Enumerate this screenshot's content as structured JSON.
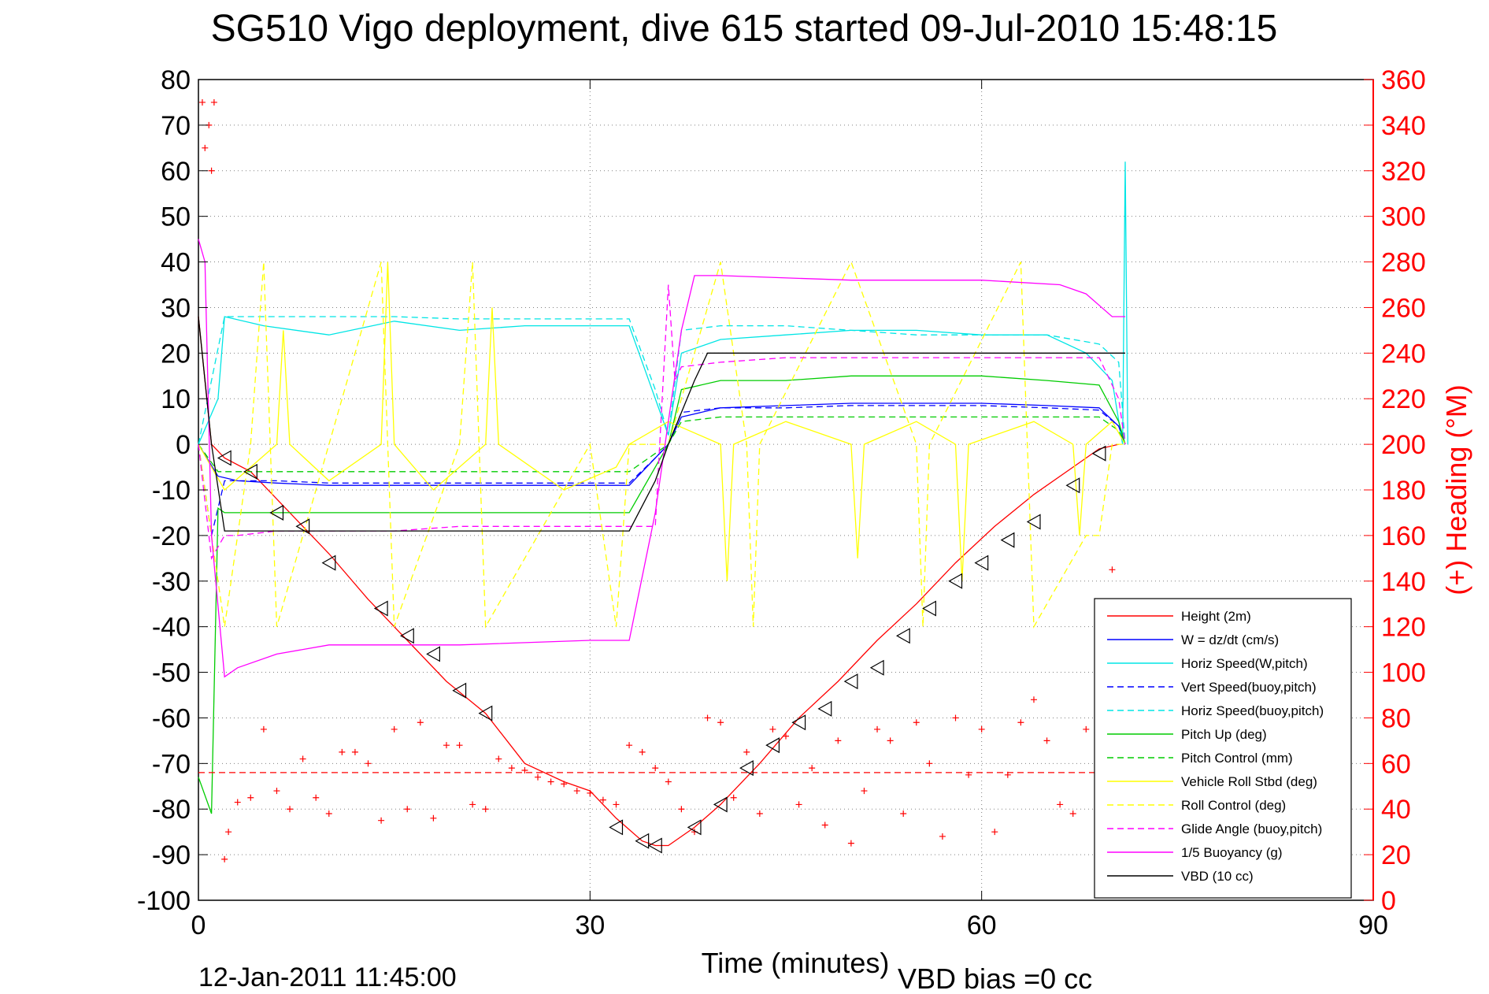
{
  "chart_data": {
    "type": "line",
    "title": "SG510 Vigo deployment, dive 615 started 09-Jul-2010 15:48:15",
    "xlabel": "Time (minutes)",
    "ylabel_left": "",
    "ylabel_right": "(+) Heading (°M)",
    "xlim": [
      0,
      90
    ],
    "ylim_left": [
      -100,
      80
    ],
    "ylim_right": [
      0,
      360
    ],
    "xticks": [
      "0",
      "30",
      "60",
      "90"
    ],
    "xtick_values": [
      0,
      30,
      60,
      90
    ],
    "yticks_left": [
      "80",
      "70",
      "60",
      "50",
      "40",
      "30",
      "20",
      "10",
      "0",
      "-10",
      "-20",
      "-30",
      "-40",
      "-50",
      "-60",
      "-70",
      "-80",
      "-90",
      "-100"
    ],
    "yticks_left_values": [
      80,
      70,
      60,
      50,
      40,
      30,
      20,
      10,
      0,
      -10,
      -20,
      -30,
      -40,
      -50,
      -60,
      -70,
      -80,
      -90,
      -100
    ],
    "yticks_right": [
      "360",
      "340",
      "320",
      "300",
      "280",
      "260",
      "240",
      "220",
      "200",
      "180",
      "160",
      "140",
      "120",
      "100",
      "80",
      "60",
      "40",
      "20",
      "0"
    ],
    "yticks_right_values": [
      360,
      340,
      320,
      300,
      280,
      260,
      240,
      220,
      200,
      180,
      160,
      140,
      120,
      100,
      80,
      60,
      40,
      20,
      0
    ],
    "grid": true,
    "legend_position": "bottom-right",
    "footer_left": "12-Jan-2011 11:45:00",
    "footer_right": "VBD bias =0 cc",
    "colors": {
      "axes": "#000000",
      "right_axis": "#ff0000",
      "grid": "#808080"
    },
    "series": [
      {
        "name": "Height (2m)",
        "color": "#ff0000",
        "style": "solid",
        "axis": "left",
        "x": [
          0,
          1,
          2,
          4,
          6,
          8,
          10,
          13,
          16,
          19,
          22,
          25,
          28,
          30,
          32,
          34,
          35,
          36,
          38,
          40,
          43,
          46,
          49,
          52,
          55,
          58,
          61,
          64,
          67,
          69,
          70.5
        ],
        "y": [
          28,
          0,
          -3,
          -6,
          -12,
          -18,
          -24,
          -34,
          -43,
          -52,
          -59,
          -70,
          -74,
          -76,
          -82,
          -87,
          -88,
          -88,
          -84,
          -79,
          -70,
          -60,
          -52,
          -43,
          -35,
          -26,
          -18,
          -11,
          -5,
          -1,
          0
        ]
      },
      {
        "name": "W = dz/dt (cm/s)",
        "color": "#0000ff",
        "style": "solid",
        "axis": "left",
        "x": [
          0,
          1.5,
          3,
          6,
          10,
          15,
          20,
          25,
          30,
          33,
          35,
          36,
          37,
          40,
          45,
          50,
          55,
          60,
          65,
          69,
          70.5,
          71
        ],
        "y": [
          0,
          -7,
          -8,
          -8.5,
          -9,
          -9,
          -9,
          -9,
          -9,
          -9,
          -3,
          0,
          6,
          8,
          8.5,
          9,
          9,
          9,
          8.5,
          8,
          4,
          0
        ]
      },
      {
        "name": "Horiz Speed(W,pitch)",
        "color": "#00e5e5",
        "style": "solid",
        "axis": "left",
        "x": [
          0,
          1.5,
          2,
          5,
          10,
          15,
          20,
          25,
          30,
          33,
          35,
          36,
          37,
          40,
          45,
          50,
          55,
          60,
          65,
          68,
          70,
          70.8,
          71,
          71.2
        ],
        "y": [
          0,
          10,
          28,
          26,
          24,
          27,
          25,
          26,
          26,
          26,
          10,
          2,
          20,
          23,
          24,
          25,
          25,
          24,
          24,
          20,
          14,
          0,
          62,
          0
        ]
      },
      {
        "name": "Vert Speed(buoy,pitch)",
        "color": "#0000ff",
        "style": "dashed",
        "axis": "left",
        "x": [
          0,
          1,
          2,
          3,
          6,
          10,
          15,
          20,
          25,
          30,
          33,
          35,
          36,
          37,
          40,
          45,
          50,
          55,
          60,
          65,
          69,
          70.5,
          71
        ],
        "y": [
          0,
          -20,
          -8,
          -8,
          -8,
          -8.5,
          -8.5,
          -8.5,
          -8.5,
          -8.5,
          -8.5,
          -3,
          0,
          7,
          8,
          8,
          8.5,
          8.5,
          8.5,
          8,
          7.5,
          4,
          0
        ]
      },
      {
        "name": "Horiz Speed(buoy,pitch)",
        "color": "#00e5e5",
        "style": "dashed",
        "axis": "left",
        "x": [
          0,
          2,
          3,
          6,
          10,
          15,
          20,
          25,
          30,
          33,
          35,
          36,
          37,
          40,
          45,
          50,
          55,
          60,
          65,
          69,
          70.5,
          71
        ],
        "y": [
          0,
          28,
          28,
          28,
          28,
          28,
          27.5,
          27.5,
          27.5,
          27.5,
          12,
          2,
          25,
          26,
          26,
          25,
          24,
          24,
          24,
          22,
          18,
          0
        ]
      },
      {
        "name": "Pitch Up (deg)",
        "color": "#00cc00",
        "style": "solid",
        "axis": "left",
        "x": [
          0,
          1,
          1.5,
          2,
          5,
          10,
          15,
          20,
          25,
          30,
          33,
          35,
          36,
          37,
          40,
          45,
          50,
          55,
          60,
          65,
          69,
          70.5,
          71
        ],
        "y": [
          -73,
          -81,
          -14,
          -15,
          -15,
          -15,
          -15,
          -15,
          -15,
          -15,
          -15,
          -5,
          0,
          12,
          14,
          14,
          15,
          15,
          15,
          14,
          13,
          5,
          0
        ]
      },
      {
        "name": "Pitch Control (mm)",
        "color": "#00cc00",
        "style": "dashed",
        "axis": "left",
        "x": [
          0,
          1.5,
          3,
          10,
          20,
          30,
          33,
          35,
          36,
          37,
          40,
          50,
          60,
          69,
          70.5,
          71
        ],
        "y": [
          0,
          -6,
          -6,
          -6,
          -6,
          -6,
          -6,
          -2,
          0,
          5,
          6,
          6,
          6,
          6,
          3,
          0
        ]
      },
      {
        "name": "Vehicle Roll Stbd (deg)",
        "color": "#ffff00",
        "style": "solid",
        "axis": "left",
        "x": [
          0,
          2,
          4,
          6,
          6.5,
          7,
          10,
          14,
          14.5,
          15,
          18,
          22,
          22.5,
          23,
          28,
          32,
          33,
          36,
          40,
          40.5,
          41,
          45,
          50,
          50.5,
          51,
          55,
          58,
          58.5,
          59,
          64,
          67,
          67.5,
          68,
          70,
          71
        ],
        "y": [
          0,
          -10,
          -5,
          0,
          25,
          0,
          -8,
          0,
          40,
          0,
          -10,
          0,
          30,
          0,
          -10,
          -5,
          0,
          5,
          0,
          -30,
          0,
          5,
          0,
          -25,
          0,
          5,
          0,
          -30,
          0,
          5,
          0,
          -20,
          0,
          5,
          0
        ]
      },
      {
        "name": "Roll Control (deg)",
        "color": "#ffff00",
        "style": "dashed",
        "axis": "left",
        "x": [
          0,
          2,
          4,
          5,
          5.5,
          6,
          10,
          14,
          14.5,
          15,
          20,
          21,
          21.5,
          22,
          30,
          32,
          33,
          36,
          40,
          42,
          42.5,
          43,
          50,
          55,
          55.5,
          56,
          63,
          63.5,
          64,
          68,
          69,
          70,
          71
        ],
        "y": [
          0,
          -40,
          0,
          40,
          0,
          -40,
          0,
          40,
          0,
          -40,
          0,
          40,
          0,
          -40,
          0,
          -40,
          0,
          0,
          40,
          0,
          -40,
          0,
          40,
          0,
          -40,
          0,
          40,
          0,
          -40,
          -20,
          -20,
          0,
          0
        ]
      },
      {
        "name": "Glide Angle (buoy,pitch)",
        "color": "#ff00ff",
        "style": "dashed",
        "axis": "left",
        "x": [
          0,
          1,
          2,
          3,
          6,
          10,
          15,
          20,
          25,
          30,
          33,
          35,
          36,
          36.5,
          37,
          40,
          45,
          50,
          55,
          60,
          65,
          69,
          70.5,
          71
        ],
        "y": [
          0,
          -25,
          -20,
          -20,
          -19,
          -19,
          -19,
          -18,
          -18,
          -18,
          -18,
          -18,
          35,
          14,
          17,
          18,
          19,
          19,
          19,
          19,
          19,
          19,
          10,
          0
        ]
      },
      {
        "name": "1/5 Buoyancy (g)",
        "color": "#ff00ff",
        "style": "solid",
        "axis": "left",
        "x": [
          0,
          0.5,
          1,
          2,
          3,
          6,
          10,
          20,
          30,
          33,
          35,
          37,
          38,
          40,
          50,
          60,
          66,
          68,
          70,
          71
        ],
        "y": [
          45,
          40,
          -20,
          -51,
          -49,
          -46,
          -44,
          -44,
          -43,
          -43,
          -15,
          25,
          37,
          37,
          36,
          36,
          35,
          33,
          28,
          28
        ]
      },
      {
        "name": "VBD (10 cc)",
        "color": "#000000",
        "style": "solid",
        "axis": "left",
        "x": [
          0,
          1,
          2,
          3,
          10,
          20,
          30,
          33,
          35,
          36,
          38,
          39,
          45,
          55,
          65,
          71
        ],
        "y": [
          28,
          0,
          -19,
          -19,
          -19,
          -19,
          -19,
          -19,
          -8,
          0,
          14,
          20,
          20,
          20,
          20,
          20
        ]
      },
      {
        "name": "",
        "color": "#ff0000",
        "style": "marker-plus",
        "axis": "right",
        "x": [
          0.3,
          0.5,
          0.8,
          1,
          1.2,
          2,
          2.3,
          3,
          4,
          5,
          6,
          7,
          8,
          9,
          10,
          11,
          12,
          13,
          14,
          15,
          16,
          17,
          18,
          19,
          20,
          21,
          22,
          23,
          24,
          25,
          26,
          27,
          28,
          29,
          30,
          31,
          32,
          33,
          34,
          35,
          36,
          37,
          38,
          39,
          40,
          41,
          42,
          43,
          44,
          45,
          46,
          47,
          48,
          49,
          50,
          51,
          52,
          53,
          54,
          55,
          56,
          57,
          58,
          59,
          60,
          61,
          62,
          63,
          64,
          65,
          66,
          67,
          68,
          69,
          70
        ],
        "y": [
          350,
          330,
          340,
          320,
          350,
          18,
          30,
          43,
          45,
          75,
          48,
          40,
          62,
          45,
          38,
          65,
          65,
          60,
          35,
          75,
          40,
          78,
          36,
          68,
          68,
          42,
          40,
          62,
          58,
          57,
          54,
          52,
          51,
          48,
          47,
          44,
          42,
          68,
          65,
          58,
          52,
          40,
          30,
          80,
          78,
          45,
          65,
          38,
          75,
          72,
          42,
          58,
          33,
          70,
          25,
          48,
          75,
          70,
          38,
          78,
          60,
          28,
          80,
          55,
          75,
          30,
          55,
          78,
          88,
          70,
          42,
          38,
          75,
          130,
          145
        ]
      },
      {
        "name": "",
        "color": "#ff0000",
        "style": "dashed",
        "axis": "right",
        "x": [
          0,
          71
        ],
        "y": [
          56,
          56
        ]
      },
      {
        "name": "",
        "color": "#000000",
        "style": "marker-triangle",
        "axis": "left",
        "x": [
          2,
          4,
          6,
          8,
          10,
          14,
          16,
          18,
          20,
          22,
          32,
          34,
          35,
          38,
          40,
          42,
          44,
          46,
          48,
          50,
          52,
          54,
          56,
          58,
          60,
          62,
          64,
          67,
          69
        ],
        "y": [
          -3,
          -6,
          -15,
          -18,
          -26,
          -36,
          -42,
          -46,
          -54,
          -59,
          -84,
          -87,
          -88,
          -84,
          -79,
          -71,
          -66,
          -61,
          -58,
          -52,
          -49,
          -42,
          -36,
          -30,
          -26,
          -21,
          -17,
          -9,
          -2
        ]
      }
    ]
  }
}
